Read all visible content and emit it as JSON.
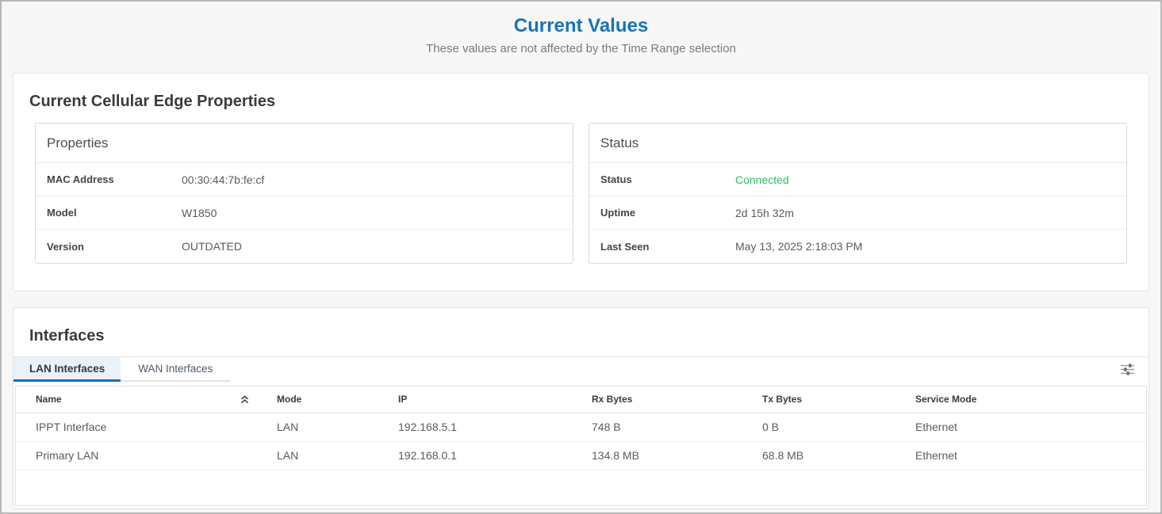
{
  "header": {
    "title": "Current Values",
    "subtitle": "These values are not affected by the Time Range selection"
  },
  "edge_card": {
    "title": "Current Cellular Edge Properties",
    "panels": [
      {
        "title": "Properties",
        "rows": [
          {
            "label": "MAC Address",
            "value": "00:30:44:7b:fe:cf"
          },
          {
            "label": "Model",
            "value": "W1850"
          },
          {
            "label": "Version",
            "value": "OUTDATED"
          }
        ]
      },
      {
        "title": "Status",
        "rows": [
          {
            "label": "Status",
            "value": "Connected",
            "value_color": "#2dbe64"
          },
          {
            "label": "Uptime",
            "value": "2d 15h 32m"
          },
          {
            "label": "Last Seen",
            "value": "May 13, 2025 2:18:03 PM"
          }
        ]
      }
    ]
  },
  "interfaces_card": {
    "title": "Interfaces",
    "tabs": [
      {
        "label": "LAN Interfaces",
        "active": true
      },
      {
        "label": "WAN Interfaces",
        "active": false
      }
    ],
    "icons": {
      "name_column_sort": "sort-ascending-icon",
      "toolbar": "column-settings-sliders-icon"
    },
    "table": {
      "columns": [
        "Name",
        "Mode",
        "IP",
        "Rx Bytes",
        "Tx Bytes",
        "Service Mode"
      ],
      "sorted_column": "Name",
      "rows": [
        {
          "name": "IPPT Interface",
          "mode": "LAN",
          "ip": "192.168.5.1",
          "rx_bytes": "748 B",
          "tx_bytes": "0 B",
          "service_mode": "Ethernet"
        },
        {
          "name": "Primary LAN",
          "mode": "LAN",
          "ip": "192.168.0.1",
          "rx_bytes": "134.8 MB",
          "tx_bytes": "68.8 MB",
          "service_mode": "Ethernet"
        }
      ]
    }
  },
  "colors": {
    "accent_blue": "#1673b9",
    "status_green": "#2dbe64"
  }
}
